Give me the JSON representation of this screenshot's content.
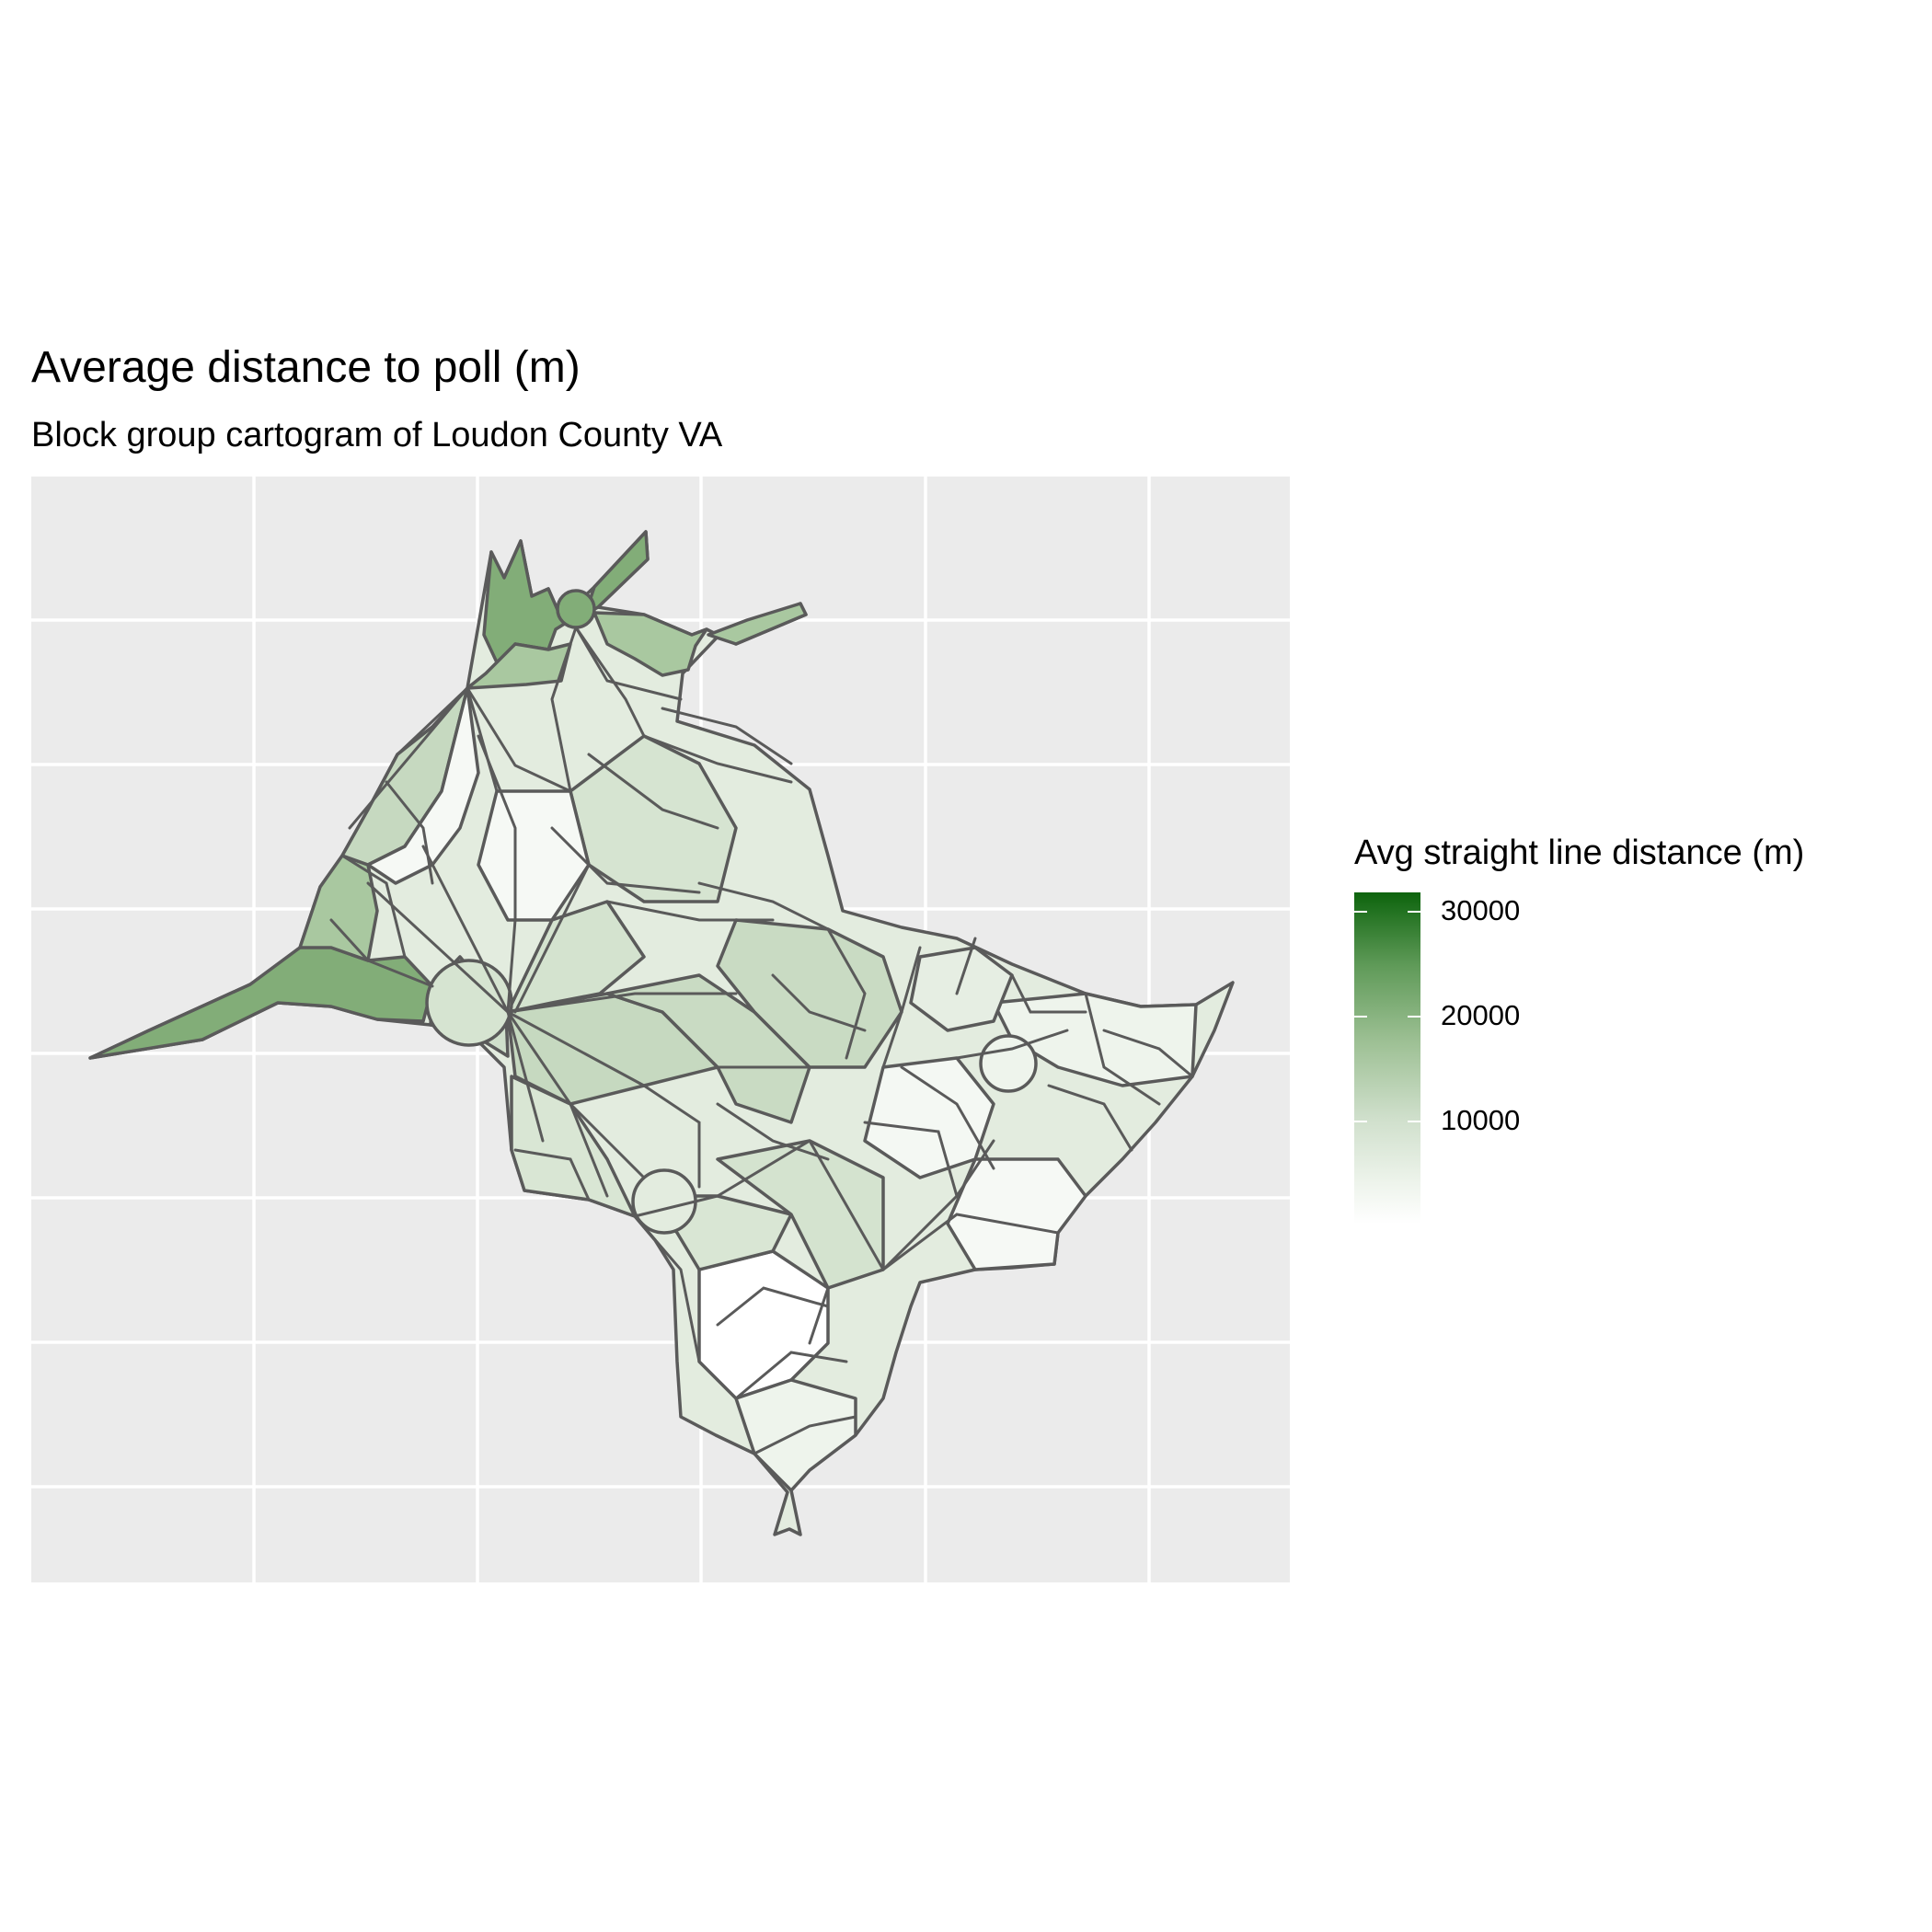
{
  "title": "Average distance to poll (m)",
  "subtitle": "Block group cartogram of Loudon County VA",
  "legend": {
    "title": "Avg straight line distance (m)",
    "ticks": [
      "30000",
      "20000",
      "10000"
    ],
    "tick_values": [
      30000,
      20000,
      10000
    ],
    "range": [
      0,
      32000
    ],
    "color_low": "#ffffff",
    "color_high": "#0d640d"
  },
  "colors": {
    "panel_background": "#ebebeb",
    "grid": "#ffffff",
    "border": "#5a5a5a",
    "fill_dark": "#82ad78",
    "fill_medium": "#a9c8a0",
    "fill_light": "#dde9d8",
    "fill_lightest": "#f6f9f5"
  },
  "map": {
    "gridlines": true,
    "axis_labels": "none"
  }
}
